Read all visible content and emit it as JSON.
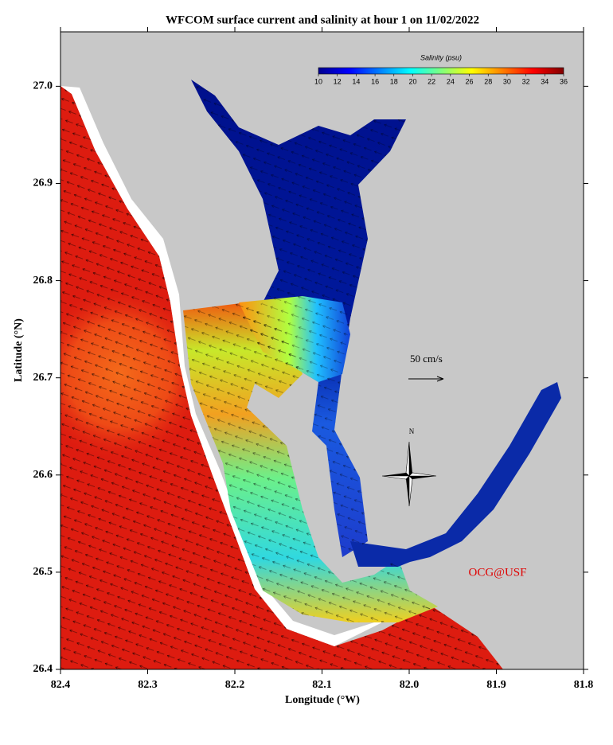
{
  "map": {
    "title": "WFCOM surface current and salinity at hour 1 on 11/02/2022",
    "x_axis": {
      "label": "Longitude (°W)",
      "lim": [
        82.4,
        81.8
      ],
      "ticks": [
        82.4,
        82.3,
        82.2,
        82.1,
        {
          "value": 82,
          "label": "82.0"
        },
        81.9,
        81.8
      ]
    },
    "y_axis": {
      "label": "Latitude (°N)",
      "lim": [
        26.4,
        27.056
      ],
      "ticks": [
        26.4,
        26.5,
        26.6,
        26.7,
        26.8,
        26.9,
        {
          "value": 27,
          "label": "27.0"
        }
      ]
    },
    "colorbar": {
      "label": "Salinity (psu)",
      "lim": [
        10,
        36
      ],
      "ticks": [
        10,
        12,
        14,
        16,
        18,
        20,
        22,
        24,
        26,
        28,
        30,
        32,
        34,
        36
      ]
    },
    "scale_label": "50 cm/s",
    "compass_label": "N",
    "credit": "OCG@USF"
  }
}
